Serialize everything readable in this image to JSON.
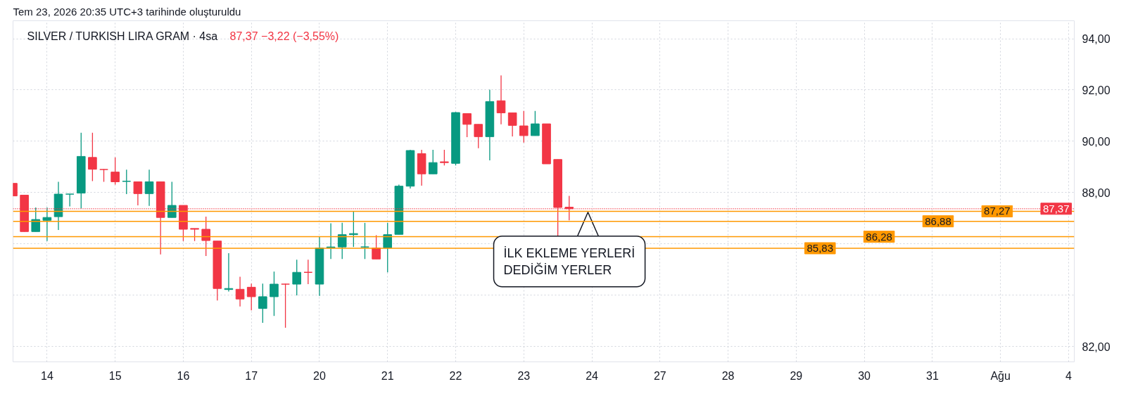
{
  "chart_data": {
    "type": "candlestick",
    "title": "SILVER / TURKISH LIRA GRAM · 4sa",
    "subtitle": "87,37  −3,22 (−3,55%)",
    "categories": [
      null,
      null,
      null,
      "14",
      null,
      null,
      null,
      null,
      null,
      "15",
      null,
      null,
      null,
      null,
      null,
      "16",
      null,
      null,
      null,
      null,
      null,
      "17",
      null,
      null,
      null,
      null,
      null,
      "20",
      null,
      null,
      null,
      null,
      null,
      "21",
      null,
      null,
      null,
      null,
      null,
      "22",
      null,
      null,
      null,
      null,
      null,
      "23",
      null,
      null,
      null,
      null,
      null,
      "24",
      null,
      null,
      null,
      null,
      null,
      "27",
      null,
      null,
      null,
      null,
      null,
      "28",
      null,
      null,
      null,
      null,
      null,
      "29",
      null,
      null,
      null,
      null,
      null,
      "30",
      null,
      null,
      null,
      null,
      null,
      "31",
      null,
      null,
      null,
      null,
      null,
      "Ağu",
      null,
      null,
      null,
      null,
      null,
      "4"
    ],
    "ohlc": [
      [
        88.36,
        88.36,
        87.87,
        87.87
      ],
      [
        87.9,
        87.9,
        86.48,
        86.48
      ],
      [
        86.48,
        87.42,
        86.48,
        86.95
      ],
      [
        86.92,
        87.42,
        86.11,
        87.03
      ],
      [
        87.06,
        88.42,
        86.54,
        87.94
      ],
      [
        87.92,
        87.94,
        87.46,
        87.94
      ],
      [
        87.98,
        90.33,
        87.38,
        89.41
      ],
      [
        89.37,
        90.33,
        88.45,
        88.91
      ],
      [
        88.92,
        88.92,
        88.42,
        88.9
      ],
      [
        88.8,
        89.37,
        88.31,
        88.42
      ],
      [
        88.42,
        88.89,
        87.94,
        88.44
      ],
      [
        88.42,
        88.42,
        87.5,
        87.96
      ],
      [
        87.96,
        88.89,
        87.48,
        88.42
      ],
      [
        88.42,
        88.42,
        85.59,
        87.03
      ],
      [
        87.03,
        88.42,
        87.03,
        87.5
      ],
      [
        87.5,
        87.5,
        86.11,
        86.57
      ],
      [
        86.6,
        86.6,
        86.11,
        86.57
      ],
      [
        86.57,
        87.06,
        85.53,
        86.13
      ],
      [
        86.11,
        86.11,
        83.79,
        84.26
      ],
      [
        84.22,
        85.64,
        84.14,
        84.26
      ],
      [
        84.23,
        84.72,
        83.56,
        83.85
      ],
      [
        84.31,
        84.45,
        83.41,
        83.94
      ],
      [
        83.48,
        84.45,
        82.92,
        83.94
      ],
      [
        83.94,
        84.92,
        83.19,
        84.43
      ],
      [
        84.45,
        84.45,
        82.73,
        84.43
      ],
      [
        84.43,
        85.38,
        83.99,
        84.89
      ],
      [
        84.91,
        85.38,
        84.43,
        84.89
      ],
      [
        84.43,
        86.28,
        83.97,
        85.84
      ],
      [
        85.84,
        86.8,
        85.41,
        85.88
      ],
      [
        85.88,
        86.82,
        85.41,
        86.36
      ],
      [
        86.36,
        87.26,
        85.88,
        86.4
      ],
      [
        85.86,
        86.82,
        85.41,
        85.88
      ],
      [
        85.84,
        86.34,
        85.41,
        85.41
      ],
      [
        85.84,
        86.82,
        84.89,
        86.36
      ],
      [
        86.37,
        88.31,
        86.37,
        88.25
      ],
      [
        88.25,
        89.67,
        88.16,
        89.64
      ],
      [
        89.52,
        89.67,
        88.27,
        88.73
      ],
      [
        88.73,
        89.67,
        88.73,
        89.17
      ],
      [
        89.2,
        89.67,
        89.06,
        89.17
      ],
      [
        89.14,
        91.14,
        89.06,
        91.12
      ],
      [
        91.08,
        91.08,
        90.16,
        90.66
      ],
      [
        90.66,
        90.66,
        89.73,
        90.18
      ],
      [
        90.18,
        92.01,
        89.26,
        91.55
      ],
      [
        91.58,
        92.57,
        90.66,
        91.11
      ],
      [
        91.11,
        91.11,
        90.19,
        90.62
      ],
      [
        90.6,
        91.18,
        89.95,
        90.22
      ],
      [
        90.22,
        91.18,
        90.22,
        90.68
      ],
      [
        90.68,
        90.68,
        89.12,
        89.12
      ],
      [
        89.29,
        89.29,
        86.3,
        87.42
      ],
      [
        87.43,
        87.87,
        86.92,
        87.37
      ],
      null,
      null,
      null,
      null,
      null,
      null,
      null,
      null,
      null,
      null,
      null,
      null,
      null,
      null,
      null,
      null,
      null,
      null,
      null,
      null,
      null,
      null,
      null,
      null,
      null,
      null,
      null,
      null,
      null,
      null,
      null,
      null,
      null,
      null,
      null,
      null,
      null,
      null,
      null,
      null,
      null,
      null,
      null,
      null
    ],
    "colors": [
      "#f23645",
      "#f23645",
      "#089981",
      "#089981",
      "#089981",
      "#089981",
      "#089981",
      "#f23645",
      "#f23645",
      "#f23645",
      "#089981",
      "#f23645",
      "#089981",
      "#f23645",
      "#089981",
      "#f23645",
      "#f23645",
      "#f23645",
      "#f23645",
      "#089981",
      "#f23645",
      "#f23645",
      "#089981",
      "#089981",
      "#f23645",
      "#089981",
      "#f23645",
      "#089981",
      "#089981",
      "#089981",
      "#089981",
      "#089981",
      "#f23645",
      "#089981",
      "#089981",
      "#089981",
      "#f23645",
      "#089981",
      "#f23645",
      "#089981",
      "#f23645",
      "#f23645",
      "#089981",
      "#f23645",
      "#f23645",
      "#f23645",
      "#089981",
      "#f23645",
      "#f23645",
      "#f23645",
      null,
      null,
      null,
      null,
      null,
      null,
      null,
      null,
      null,
      null,
      null,
      null,
      null,
      null,
      null,
      null,
      null,
      null,
      null,
      null,
      null,
      null,
      null,
      null,
      null,
      null,
      null,
      null,
      null,
      null,
      null,
      null,
      null,
      null,
      null,
      null,
      null,
      null,
      null,
      null,
      null,
      null,
      null,
      null
    ],
    "ylim": [
      81.4,
      94.7
    ],
    "yticks": [
      {
        "value": 82,
        "label": "82,00"
      },
      {
        "value": 84,
        "label": null
      },
      {
        "value": 86,
        "label": null
      },
      {
        "value": 88,
        "label": "88,00"
      },
      {
        "value": 90,
        "label": "90,00"
      },
      {
        "value": 92,
        "label": "92,00"
      },
      {
        "value": 94,
        "label": "94,00"
      }
    ],
    "grid": true,
    "ref_lines": [
      {
        "axis": "y",
        "value": 87.37,
        "label": "87,37",
        "color": "#f23645",
        "line_style": "dotted"
      },
      {
        "axis": "y",
        "value": 87.27,
        "label": "87,27",
        "color": "#ff9800"
      },
      {
        "axis": "y",
        "value": 86.88,
        "label": "86,88",
        "color": "#ff9800"
      },
      {
        "axis": "y",
        "value": 86.28,
        "label": "86,28",
        "color": "#ff9800"
      },
      {
        "axis": "y",
        "value": 85.83,
        "label": "85,83",
        "color": "#ff9800"
      }
    ],
    "annotations": [
      "Tem 23, 2026 20:35 UTC+3 tarihinde oluşturuldu",
      "İLK EKLEME YERLERİ\nDEDİĞİM YERLER"
    ]
  }
}
